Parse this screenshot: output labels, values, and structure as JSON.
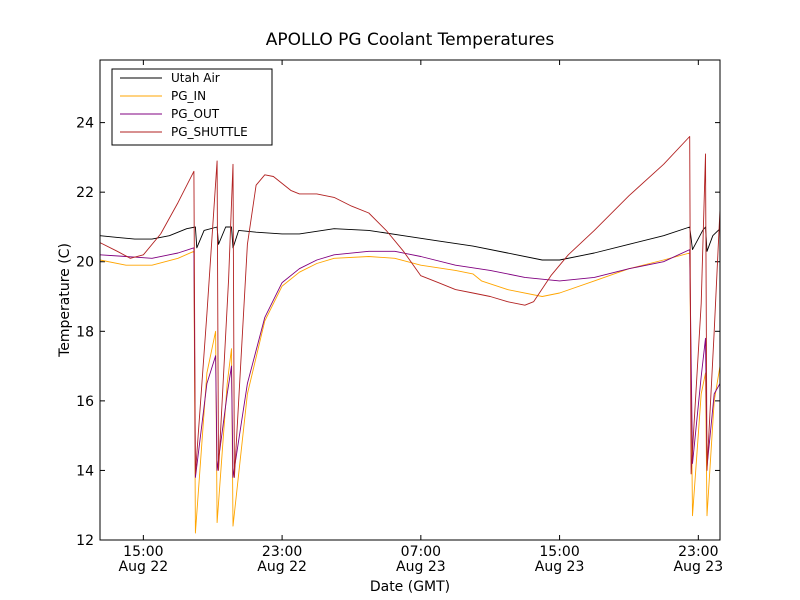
{
  "chart_data": {
    "type": "line",
    "title": "APOLLO PG Coolant Temperatures",
    "xlabel": "Date (GMT)",
    "ylabel": "Temperature (C)",
    "xlim": [
      "Aug 22 12:30",
      "Aug 24 00:15"
    ],
    "ylim": [
      12,
      25.8
    ],
    "legend_position": "top-left",
    "yticks": [
      12,
      14,
      16,
      18,
      20,
      22,
      24
    ],
    "xticks": [
      {
        "x": "Aug 22 15:00",
        "time": "15:00",
        "date": "Aug 22"
      },
      {
        "x": "Aug 22 23:00",
        "time": "23:00",
        "date": "Aug 22"
      },
      {
        "x": "Aug 23 07:00",
        "time": "07:00",
        "date": "Aug 23"
      },
      {
        "x": "Aug 23 15:00",
        "time": "15:00",
        "date": "Aug 23"
      },
      {
        "x": "Aug 23 23:00",
        "time": "23:00",
        "date": "Aug 23"
      }
    ],
    "series": [
      {
        "name": "Utah Air",
        "color": "#000000",
        "points": [
          [
            "Aug 22 12:30",
            20.75
          ],
          [
            "Aug 22 13:30",
            20.7
          ],
          [
            "Aug 22 14:30",
            20.65
          ],
          [
            "Aug 22 15:30",
            20.65
          ],
          [
            "Aug 22 16:30",
            20.75
          ],
          [
            "Aug 22 17:30",
            20.95
          ],
          [
            "Aug 22 18:00",
            21.0
          ],
          [
            "Aug 22 18:05",
            20.4
          ],
          [
            "Aug 22 18:30",
            20.9
          ],
          [
            "Aug 22 19:15",
            21.0
          ],
          [
            "Aug 22 19:20",
            20.5
          ],
          [
            "Aug 22 19:45",
            21.0
          ],
          [
            "Aug 22 20:05",
            21.0
          ],
          [
            "Aug 22 20:10",
            20.4
          ],
          [
            "Aug 22 20:30",
            20.9
          ],
          [
            "Aug 22 21:30",
            20.85
          ],
          [
            "Aug 22 23:00",
            20.8
          ],
          [
            "Aug 23 00:00",
            20.8
          ],
          [
            "Aug 23 02:00",
            20.95
          ],
          [
            "Aug 23 04:00",
            20.9
          ],
          [
            "Aug 23 06:00",
            20.75
          ],
          [
            "Aug 23 08:00",
            20.6
          ],
          [
            "Aug 23 10:00",
            20.45
          ],
          [
            "Aug 23 12:00",
            20.25
          ],
          [
            "Aug 23 14:00",
            20.05
          ],
          [
            "Aug 23 15:00",
            20.05
          ],
          [
            "Aug 23 17:00",
            20.25
          ],
          [
            "Aug 23 19:00",
            20.5
          ],
          [
            "Aug 23 21:00",
            20.75
          ],
          [
            "Aug 23 22:30",
            21.0
          ],
          [
            "Aug 23 22:40",
            20.35
          ],
          [
            "Aug 23 23:15",
            20.9
          ],
          [
            "Aug 23 23:25",
            21.0
          ],
          [
            "Aug 23 23:30",
            20.3
          ],
          [
            "Aug 23 23:50",
            20.75
          ],
          [
            "Aug 24 00:15",
            20.95
          ]
        ]
      },
      {
        "name": "PG_IN",
        "color": "#ffa500",
        "points": [
          [
            "Aug 22 12:30",
            20.05
          ],
          [
            "Aug 22 14:00",
            19.9
          ],
          [
            "Aug 22 15:30",
            19.9
          ],
          [
            "Aug 22 17:00",
            20.1
          ],
          [
            "Aug 22 17:55",
            20.3
          ],
          [
            "Aug 22 18:00",
            12.2
          ],
          [
            "Aug 22 18:40",
            16.8
          ],
          [
            "Aug 22 19:10",
            18.0
          ],
          [
            "Aug 22 19:15",
            12.5
          ],
          [
            "Aug 22 19:50",
            16.5
          ],
          [
            "Aug 22 20:05",
            17.5
          ],
          [
            "Aug 22 20:10",
            12.4
          ],
          [
            "Aug 22 21:00",
            16.2
          ],
          [
            "Aug 22 22:00",
            18.3
          ],
          [
            "Aug 22 23:00",
            19.3
          ],
          [
            "Aug 23 00:00",
            19.7
          ],
          [
            "Aug 23 01:00",
            19.95
          ],
          [
            "Aug 23 02:00",
            20.1
          ],
          [
            "Aug 23 04:00",
            20.15
          ],
          [
            "Aug 23 05:30",
            20.1
          ],
          [
            "Aug 23 07:00",
            19.9
          ],
          [
            "Aug 23 09:00",
            19.75
          ],
          [
            "Aug 23 10:00",
            19.65
          ],
          [
            "Aug 23 10:30",
            19.45
          ],
          [
            "Aug 23 12:00",
            19.2
          ],
          [
            "Aug 23 14:00",
            19.0
          ],
          [
            "Aug 23 15:00",
            19.1
          ],
          [
            "Aug 23 17:00",
            19.45
          ],
          [
            "Aug 23 19:00",
            19.8
          ],
          [
            "Aug 23 21:00",
            20.05
          ],
          [
            "Aug 23 22:30",
            20.25
          ],
          [
            "Aug 23 22:40",
            12.7
          ],
          [
            "Aug 23 23:10",
            16.2
          ],
          [
            "Aug 23 23:25",
            16.8
          ],
          [
            "Aug 23 23:30",
            12.7
          ],
          [
            "Aug 23 23:55",
            16.0
          ],
          [
            "Aug 24 00:15",
            17.0
          ]
        ]
      },
      {
        "name": "PG_OUT",
        "color": "#800080",
        "points": [
          [
            "Aug 22 12:30",
            20.2
          ],
          [
            "Aug 22 14:00",
            20.15
          ],
          [
            "Aug 22 15:30",
            20.1
          ],
          [
            "Aug 22 17:00",
            20.25
          ],
          [
            "Aug 22 17:55",
            20.4
          ],
          [
            "Aug 22 18:00",
            13.8
          ],
          [
            "Aug 22 18:40",
            16.5
          ],
          [
            "Aug 22 19:10",
            17.3
          ],
          [
            "Aug 22 19:15",
            14.0
          ],
          [
            "Aug 22 19:50",
            16.2
          ],
          [
            "Aug 22 20:05",
            17.0
          ],
          [
            "Aug 22 20:10",
            13.8
          ],
          [
            "Aug 22 21:00",
            16.5
          ],
          [
            "Aug 22 22:00",
            18.4
          ],
          [
            "Aug 22 23:00",
            19.4
          ],
          [
            "Aug 23 00:00",
            19.8
          ],
          [
            "Aug 23 01:00",
            20.05
          ],
          [
            "Aug 23 02:00",
            20.2
          ],
          [
            "Aug 23 04:00",
            20.3
          ],
          [
            "Aug 23 05:30",
            20.3
          ],
          [
            "Aug 23 07:00",
            20.15
          ],
          [
            "Aug 23 09:00",
            19.9
          ],
          [
            "Aug 23 11:00",
            19.75
          ],
          [
            "Aug 23 13:00",
            19.55
          ],
          [
            "Aug 23 15:00",
            19.45
          ],
          [
            "Aug 23 17:00",
            19.55
          ],
          [
            "Aug 23 19:00",
            19.8
          ],
          [
            "Aug 23 21:00",
            20.0
          ],
          [
            "Aug 23 22:30",
            20.35
          ],
          [
            "Aug 23 22:40",
            14.2
          ],
          [
            "Aug 23 23:10",
            16.7
          ],
          [
            "Aug 23 23:25",
            17.8
          ],
          [
            "Aug 23 23:30",
            14.1
          ],
          [
            "Aug 23 23:55",
            16.2
          ],
          [
            "Aug 24 00:15",
            16.5
          ]
        ]
      },
      {
        "name": "PG_SHUTTLE",
        "color": "#b22222",
        "points": [
          [
            "Aug 22 12:30",
            20.55
          ],
          [
            "Aug 22 13:30",
            20.3
          ],
          [
            "Aug 22 14:15",
            20.1
          ],
          [
            "Aug 22 15:00",
            20.2
          ],
          [
            "Aug 22 16:00",
            20.8
          ],
          [
            "Aug 22 17:00",
            21.7
          ],
          [
            "Aug 22 17:55",
            22.6
          ],
          [
            "Aug 22 18:00",
            13.9
          ],
          [
            "Aug 22 18:40",
            18.5
          ],
          [
            "Aug 22 19:15",
            22.9
          ],
          [
            "Aug 22 19:20",
            14.0
          ],
          [
            "Aug 22 19:55",
            19.5
          ],
          [
            "Aug 22 20:10",
            22.8
          ],
          [
            "Aug 22 20:15",
            13.8
          ],
          [
            "Aug 22 21:00",
            20.5
          ],
          [
            "Aug 22 21:30",
            22.2
          ],
          [
            "Aug 22 22:00",
            22.5
          ],
          [
            "Aug 22 22:30",
            22.45
          ],
          [
            "Aug 22 23:30",
            22.05
          ],
          [
            "Aug 23 00:00",
            21.95
          ],
          [
            "Aug 23 01:00",
            21.95
          ],
          [
            "Aug 23 02:00",
            21.85
          ],
          [
            "Aug 23 03:00",
            21.6
          ],
          [
            "Aug 23 04:00",
            21.4
          ],
          [
            "Aug 23 05:00",
            20.9
          ],
          [
            "Aug 23 06:00",
            20.3
          ],
          [
            "Aug 23 07:00",
            19.6
          ],
          [
            "Aug 23 08:00",
            19.4
          ],
          [
            "Aug 23 09:00",
            19.2
          ],
          [
            "Aug 23 10:00",
            19.1
          ],
          [
            "Aug 23 11:00",
            19.0
          ],
          [
            "Aug 23 12:00",
            18.85
          ],
          [
            "Aug 23 13:00",
            18.75
          ],
          [
            "Aug 23 13:30",
            18.85
          ],
          [
            "Aug 23 14:30",
            19.6
          ],
          [
            "Aug 23 15:30",
            20.2
          ],
          [
            "Aug 23 17:00",
            20.9
          ],
          [
            "Aug 23 19:00",
            21.9
          ],
          [
            "Aug 23 21:00",
            22.8
          ],
          [
            "Aug 23 22:30",
            23.6
          ],
          [
            "Aug 23 22:35",
            13.9
          ],
          [
            "Aug 23 23:10",
            18.8
          ],
          [
            "Aug 23 23:25",
            23.1
          ],
          [
            "Aug 23 23:30",
            14.0
          ],
          [
            "Aug 23 23:55",
            18.0
          ],
          [
            "Aug 24 00:15",
            21.5
          ]
        ]
      }
    ]
  }
}
